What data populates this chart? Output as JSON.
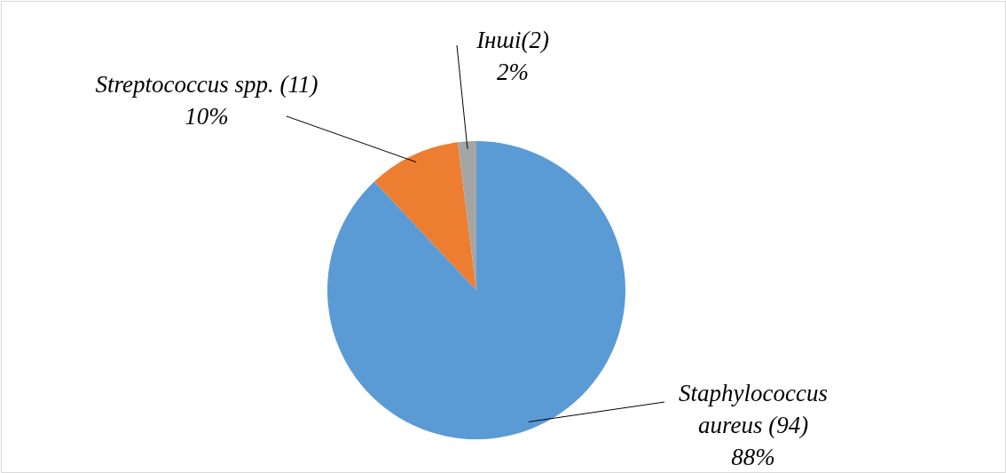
{
  "chart_data": {
    "type": "pie",
    "categories": [
      "Staphylococcus aureus (94)",
      "Streptococcus spp. (11)",
      "Інші(2)"
    ],
    "values": [
      88,
      10,
      2
    ],
    "value_labels": [
      "88%",
      "10%",
      "2%"
    ],
    "colors": [
      "#5b9bd5",
      "#ed7d31",
      "#a5a5a5"
    ]
  }
}
